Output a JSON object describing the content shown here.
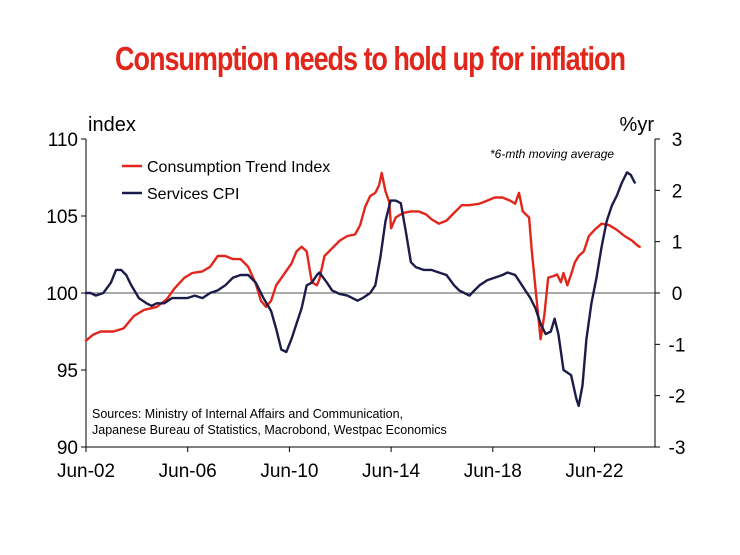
{
  "chart_data": {
    "type": "line",
    "title": "Consumption needs to hold up for inflation",
    "left_axis_label": "index",
    "right_axis_label": "%yr",
    "note": "*6-mth moving average",
    "source_line1": "Sources: Ministry of Internal Affairs and Communication,",
    "source_line2": "Japanese Bureau of Statistics, Macrobond, Westpac Economics",
    "x_range": [
      2002.42,
      2024.8
    ],
    "x_ticks": [
      {
        "x": 2002.42,
        "label": "Jun-02"
      },
      {
        "x": 2006.42,
        "label": "Jun-06"
      },
      {
        "x": 2010.42,
        "label": "Jun-10"
      },
      {
        "x": 2014.42,
        "label": "Jun-14"
      },
      {
        "x": 2018.42,
        "label": "Jun-18"
      },
      {
        "x": 2022.42,
        "label": "Jun-22"
      }
    ],
    "y_left_range": [
      90,
      110
    ],
    "y_left_ticks": [
      90,
      95,
      100,
      105,
      110
    ],
    "y_right_range": [
      -3,
      3
    ],
    "y_right_ticks": [
      -3,
      -2,
      -1,
      0,
      1,
      2,
      3
    ],
    "series": [
      {
        "name": "Consumption Trend Index",
        "axis": "left",
        "color": "#e1261c",
        "points": [
          [
            2002.42,
            96.9
          ],
          [
            2002.7,
            97.3
          ],
          [
            2003.0,
            97.5
          ],
          [
            2003.5,
            97.5
          ],
          [
            2003.9,
            97.7
          ],
          [
            2004.3,
            98.5
          ],
          [
            2004.7,
            98.9
          ],
          [
            2005.2,
            99.1
          ],
          [
            2005.6,
            99.6
          ],
          [
            2005.9,
            100.3
          ],
          [
            2006.3,
            101.0
          ],
          [
            2006.6,
            101.3
          ],
          [
            2007.0,
            101.4
          ],
          [
            2007.3,
            101.7
          ],
          [
            2007.6,
            102.4
          ],
          [
            2007.9,
            102.4
          ],
          [
            2008.2,
            102.2
          ],
          [
            2008.5,
            102.2
          ],
          [
            2008.8,
            101.7
          ],
          [
            2009.1,
            100.6
          ],
          [
            2009.3,
            99.5
          ],
          [
            2009.5,
            99.1
          ],
          [
            2009.7,
            99.5
          ],
          [
            2009.9,
            100.5
          ],
          [
            2010.2,
            101.2
          ],
          [
            2010.5,
            101.9
          ],
          [
            2010.7,
            102.7
          ],
          [
            2010.9,
            103.0
          ],
          [
            2011.1,
            102.7
          ],
          [
            2011.3,
            100.7
          ],
          [
            2011.5,
            100.5
          ],
          [
            2011.6,
            100.9
          ],
          [
            2011.8,
            102.4
          ],
          [
            2012.1,
            102.9
          ],
          [
            2012.4,
            103.4
          ],
          [
            2012.7,
            103.7
          ],
          [
            2013.0,
            103.8
          ],
          [
            2013.2,
            104.4
          ],
          [
            2013.4,
            105.6
          ],
          [
            2013.6,
            106.3
          ],
          [
            2013.8,
            106.5
          ],
          [
            2013.95,
            107.0
          ],
          [
            2014.05,
            107.8
          ],
          [
            2014.2,
            106.6
          ],
          [
            2014.35,
            105.9
          ],
          [
            2014.42,
            104.2
          ],
          [
            2014.6,
            104.9
          ],
          [
            2014.9,
            105.2
          ],
          [
            2015.2,
            105.3
          ],
          [
            2015.5,
            105.3
          ],
          [
            2015.8,
            105.1
          ],
          [
            2016.0,
            104.8
          ],
          [
            2016.3,
            104.5
          ],
          [
            2016.6,
            104.7
          ],
          [
            2016.9,
            105.2
          ],
          [
            2017.2,
            105.7
          ],
          [
            2017.5,
            105.7
          ],
          [
            2017.9,
            105.8
          ],
          [
            2018.2,
            106.0
          ],
          [
            2018.5,
            106.2
          ],
          [
            2018.8,
            106.2
          ],
          [
            2019.1,
            106.0
          ],
          [
            2019.3,
            105.8
          ],
          [
            2019.45,
            106.5
          ],
          [
            2019.6,
            105.3
          ],
          [
            2019.85,
            104.9
          ],
          [
            2019.95,
            102.8
          ],
          [
            2020.1,
            100.3
          ],
          [
            2020.3,
            97.0
          ],
          [
            2020.45,
            98.6
          ],
          [
            2020.6,
            101.0
          ],
          [
            2020.8,
            101.1
          ],
          [
            2020.95,
            101.2
          ],
          [
            2021.1,
            100.7
          ],
          [
            2021.2,
            101.3
          ],
          [
            2021.35,
            100.5
          ],
          [
            2021.5,
            101.2
          ],
          [
            2021.65,
            102.0
          ],
          [
            2021.8,
            102.4
          ],
          [
            2022.0,
            102.7
          ],
          [
            2022.2,
            103.7
          ],
          [
            2022.42,
            104.1
          ],
          [
            2022.7,
            104.5
          ],
          [
            2023.0,
            104.4
          ],
          [
            2023.3,
            104.1
          ],
          [
            2023.6,
            103.7
          ],
          [
            2023.9,
            103.4
          ],
          [
            2024.1,
            103.1
          ],
          [
            2024.2,
            103.0
          ]
        ]
      },
      {
        "name": "Services CPI",
        "axis": "right",
        "color": "#1c1c4a",
        "points": [
          [
            2002.42,
            0.0
          ],
          [
            2002.6,
            0.0
          ],
          [
            2002.8,
            -0.05
          ],
          [
            2003.1,
            0.0
          ],
          [
            2003.4,
            0.2
          ],
          [
            2003.6,
            0.45
          ],
          [
            2003.8,
            0.45
          ],
          [
            2004.0,
            0.35
          ],
          [
            2004.2,
            0.15
          ],
          [
            2004.5,
            -0.1
          ],
          [
            2004.8,
            -0.2
          ],
          [
            2005.0,
            -0.25
          ],
          [
            2005.2,
            -0.2
          ],
          [
            2005.5,
            -0.2
          ],
          [
            2005.8,
            -0.1
          ],
          [
            2006.1,
            -0.1
          ],
          [
            2006.4,
            -0.1
          ],
          [
            2006.7,
            -0.05
          ],
          [
            2007.0,
            -0.1
          ],
          [
            2007.3,
            0.0
          ],
          [
            2007.6,
            0.05
          ],
          [
            2007.9,
            0.15
          ],
          [
            2008.2,
            0.3
          ],
          [
            2008.5,
            0.35
          ],
          [
            2008.8,
            0.35
          ],
          [
            2009.1,
            0.2
          ],
          [
            2009.4,
            -0.1
          ],
          [
            2009.7,
            -0.35
          ],
          [
            2009.9,
            -0.7
          ],
          [
            2010.1,
            -1.1
          ],
          [
            2010.3,
            -1.15
          ],
          [
            2010.5,
            -0.9
          ],
          [
            2010.7,
            -0.6
          ],
          [
            2010.9,
            -0.3
          ],
          [
            2011.1,
            0.15
          ],
          [
            2011.3,
            0.2
          ],
          [
            2011.5,
            0.35
          ],
          [
            2011.6,
            0.4
          ],
          [
            2011.9,
            0.2
          ],
          [
            2012.1,
            0.05
          ],
          [
            2012.4,
            -0.02
          ],
          [
            2012.7,
            -0.05
          ],
          [
            2012.9,
            -0.1
          ],
          [
            2013.1,
            -0.15
          ],
          [
            2013.3,
            -0.1
          ],
          [
            2013.6,
            0.0
          ],
          [
            2013.8,
            0.15
          ],
          [
            2014.0,
            0.7
          ],
          [
            2014.2,
            1.4
          ],
          [
            2014.4,
            1.8
          ],
          [
            2014.6,
            1.8
          ],
          [
            2014.8,
            1.75
          ],
          [
            2015.0,
            1.2
          ],
          [
            2015.2,
            0.6
          ],
          [
            2015.4,
            0.5
          ],
          [
            2015.7,
            0.45
          ],
          [
            2016.0,
            0.45
          ],
          [
            2016.3,
            0.4
          ],
          [
            2016.6,
            0.35
          ],
          [
            2016.9,
            0.15
          ],
          [
            2017.1,
            0.05
          ],
          [
            2017.3,
            0.0
          ],
          [
            2017.5,
            -0.05
          ],
          [
            2017.7,
            0.05
          ],
          [
            2017.9,
            0.15
          ],
          [
            2018.2,
            0.25
          ],
          [
            2018.5,
            0.3
          ],
          [
            2018.8,
            0.35
          ],
          [
            2019.0,
            0.4
          ],
          [
            2019.3,
            0.35
          ],
          [
            2019.5,
            0.2
          ],
          [
            2019.7,
            0.05
          ],
          [
            2019.9,
            -0.1
          ],
          [
            2020.1,
            -0.3
          ],
          [
            2020.3,
            -0.6
          ],
          [
            2020.5,
            -0.8
          ],
          [
            2020.7,
            -0.75
          ],
          [
            2020.85,
            -0.5
          ],
          [
            2021.0,
            -0.8
          ],
          [
            2021.2,
            -1.5
          ],
          [
            2021.5,
            -1.6
          ],
          [
            2021.7,
            -2.05
          ],
          [
            2021.8,
            -2.2
          ],
          [
            2021.95,
            -1.8
          ],
          [
            2022.1,
            -0.9
          ],
          [
            2022.3,
            -0.2
          ],
          [
            2022.5,
            0.3
          ],
          [
            2022.7,
            0.9
          ],
          [
            2022.9,
            1.4
          ],
          [
            2023.1,
            1.7
          ],
          [
            2023.3,
            1.9
          ],
          [
            2023.5,
            2.15
          ],
          [
            2023.7,
            2.35
          ],
          [
            2023.85,
            2.3
          ],
          [
            2024.0,
            2.15
          ]
        ]
      }
    ]
  }
}
